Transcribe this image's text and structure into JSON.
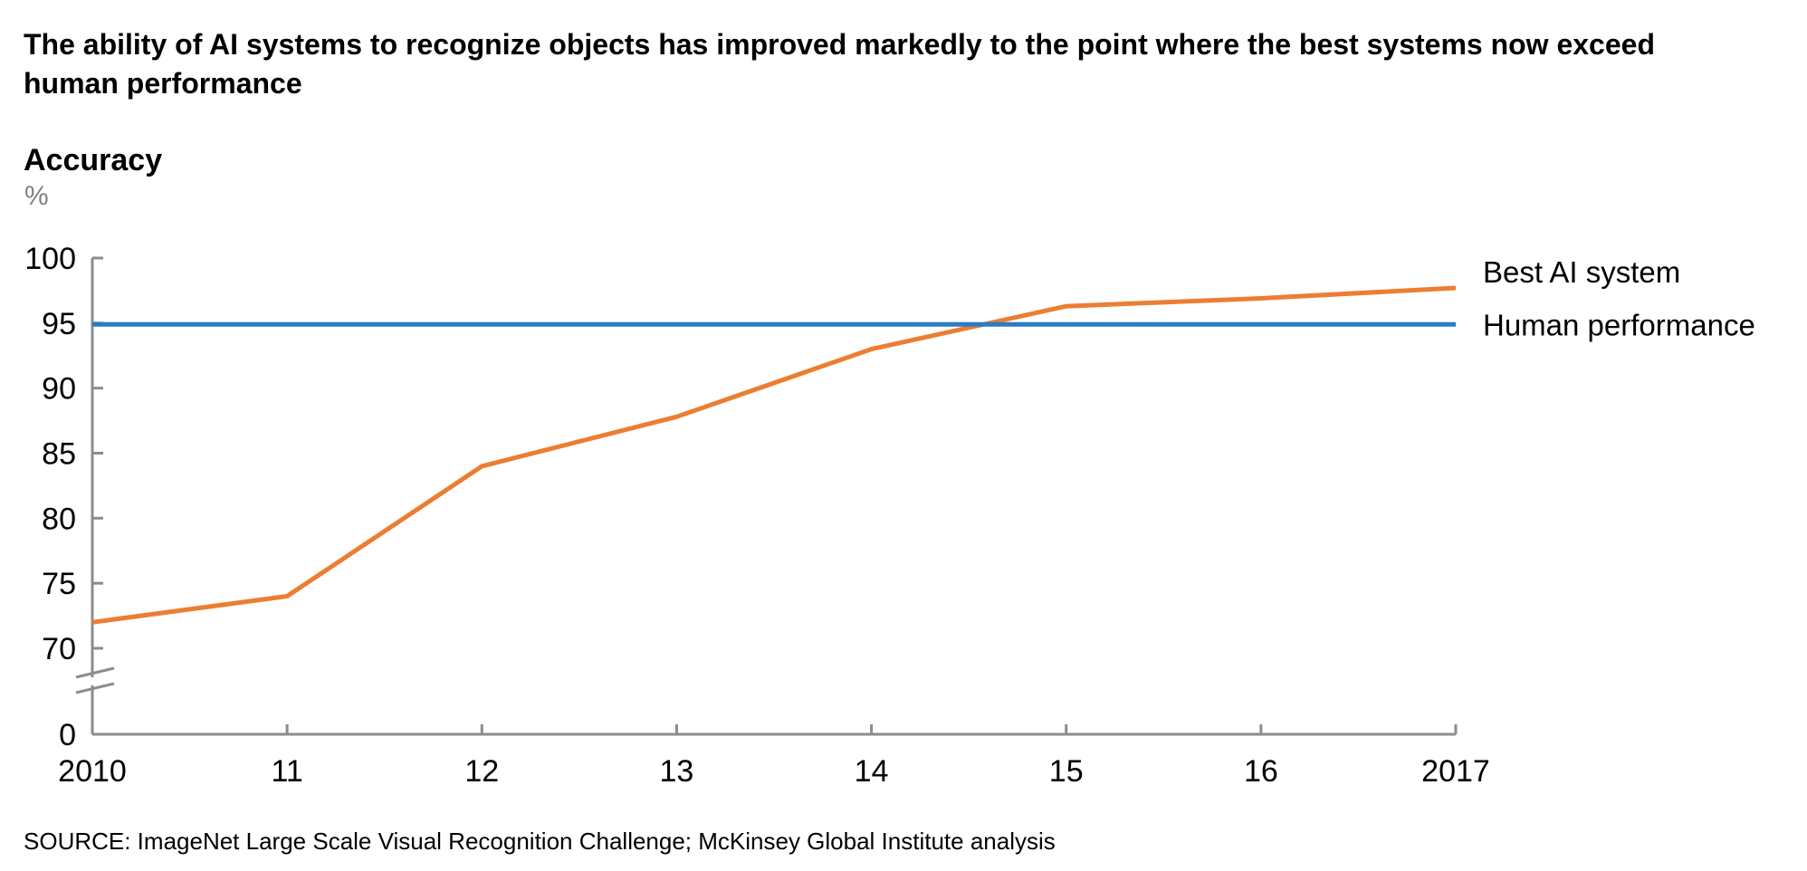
{
  "title": "The ability of AI systems to recognize objects has improved markedly to the point where the best systems now exceed human performance",
  "ylabel": "Accuracy",
  "yunit": "%",
  "source": "SOURCE:  ImageNet Large Scale Visual Recognition Challenge; McKinsey Global Institute analysis",
  "chart_data": {
    "type": "line",
    "title": "The ability of AI systems to recognize objects has improved markedly to the point where the best systems now exceed human performance",
    "ylabel": "Accuracy",
    "yunit": "%",
    "xlabel": "",
    "x": [
      2010,
      2011,
      2012,
      2013,
      2014,
      2015,
      2016,
      2017
    ],
    "xtick_labels": [
      "2010",
      "11",
      "12",
      "13",
      "14",
      "15",
      "16",
      "2017"
    ],
    "yticks": [
      70,
      75,
      80,
      85,
      90,
      95,
      100
    ],
    "ytick_labels": [
      "70",
      "75",
      "80",
      "85",
      "90",
      "95",
      "100"
    ],
    "y_zero_label": "0",
    "ylim": [
      0,
      100
    ],
    "axis_break": "between 0 and 70",
    "grid": false,
    "legend": "labels at right end of lines",
    "series": [
      {
        "name": "Best AI system",
        "color": "#ED7D31",
        "values": [
          72.0,
          74.0,
          84.0,
          87.8,
          93.0,
          96.3,
          96.9,
          97.7
        ]
      },
      {
        "name": "Human performance",
        "color": "#2A7CC4",
        "values": [
          94.9,
          94.9,
          94.9,
          94.9,
          94.9,
          94.9,
          94.9,
          94.9
        ]
      }
    ]
  }
}
